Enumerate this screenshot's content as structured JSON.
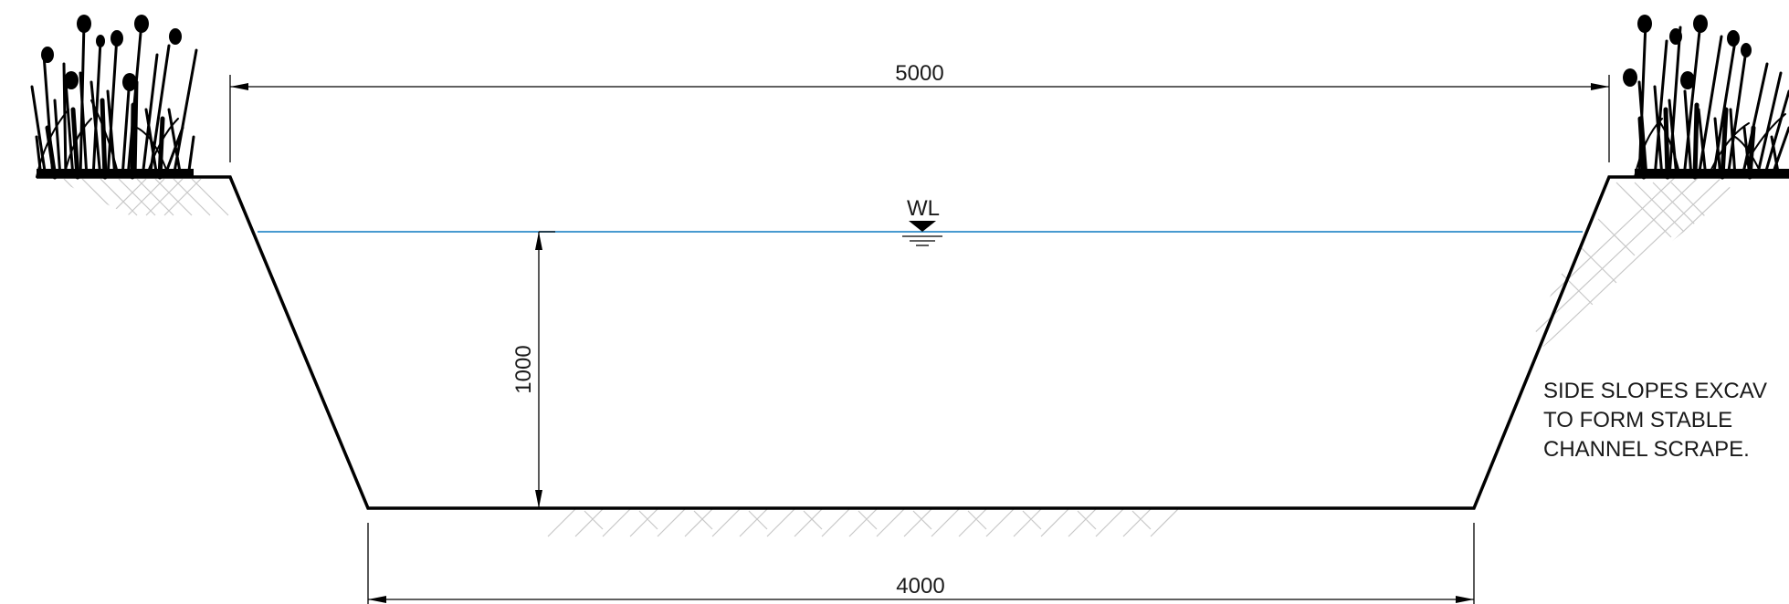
{
  "dimensions": {
    "top_width": "5000",
    "bottom_width": "4000",
    "water_depth": "1000"
  },
  "water_level": {
    "label": "WL",
    "line_color": "#2e8bc9"
  },
  "note": {
    "lines": [
      "SIDE SLOPES EXCAV",
      "TO FORM STABLE",
      "CHANNEL SCRAPE."
    ]
  }
}
